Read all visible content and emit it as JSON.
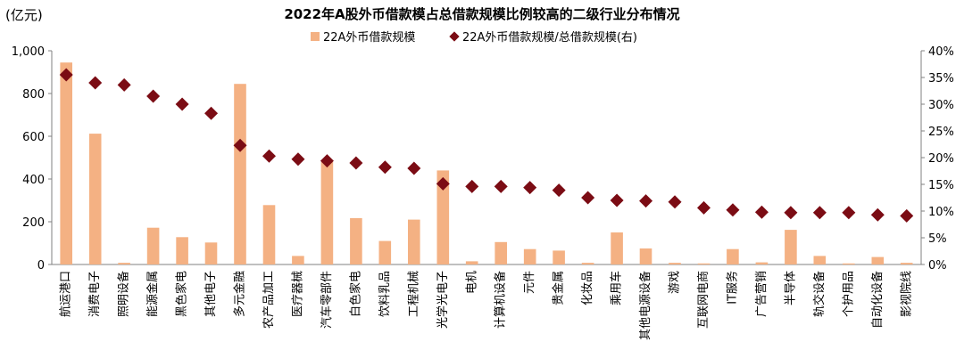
{
  "chart_data": {
    "type": "bar",
    "title": "2022年A股外币借款模占总借款规模比例较高的二级行业分布情况",
    "ylabel_left": "(亿元)",
    "ylim_left": [
      0,
      1000
    ],
    "yticks_left": [
      "0",
      "200",
      "400",
      "600",
      "800",
      "1,000"
    ],
    "ylim_right": [
      0,
      40
    ],
    "yticks_right": [
      "0%",
      "5%",
      "10%",
      "15%",
      "20%",
      "25%",
      "30%",
      "35%",
      "40%"
    ],
    "legend": "top",
    "categories": [
      "航运港口",
      "消费电子",
      "照明设备",
      "能源金属",
      "黑色家电",
      "其他电子",
      "多元金融",
      "农产品加工",
      "医疗器械",
      "汽车零部件",
      "白色家电",
      "饮料乳品",
      "工程机械",
      "光学光电子",
      "电机",
      "计算机设备",
      "元件",
      "贵金属",
      "化妆品",
      "乘用车",
      "其他电源设备",
      "游戏",
      "互联网电商",
      "IT服务",
      "广告营销",
      "半导体",
      "轨交设备",
      "个护用品",
      "自动化设备",
      "影视院线"
    ],
    "series": [
      {
        "name": "22A外币借款规模",
        "type": "bar",
        "axis": "left",
        "color": "#F4B183",
        "values": [
          945,
          612,
          8,
          172,
          128,
          103,
          845,
          278,
          40,
          480,
          217,
          110,
          210,
          440,
          15,
          105,
          72,
          65,
          8,
          150,
          75,
          8,
          5,
          72,
          10,
          162,
          40,
          5,
          35,
          8
        ]
      },
      {
        "name": "22A外币借款规模/总借款规模(右)",
        "type": "scatter",
        "axis": "right",
        "color": "#7B0C14",
        "values": [
          35.5,
          34.0,
          33.6,
          31.5,
          30.0,
          28.3,
          22.3,
          20.3,
          19.7,
          19.4,
          19.0,
          18.2,
          18.0,
          15.1,
          14.6,
          14.6,
          14.4,
          13.9,
          12.5,
          12.0,
          11.9,
          11.7,
          10.6,
          10.2,
          9.8,
          9.7,
          9.7,
          9.7,
          9.3,
          9.1
        ]
      }
    ]
  }
}
